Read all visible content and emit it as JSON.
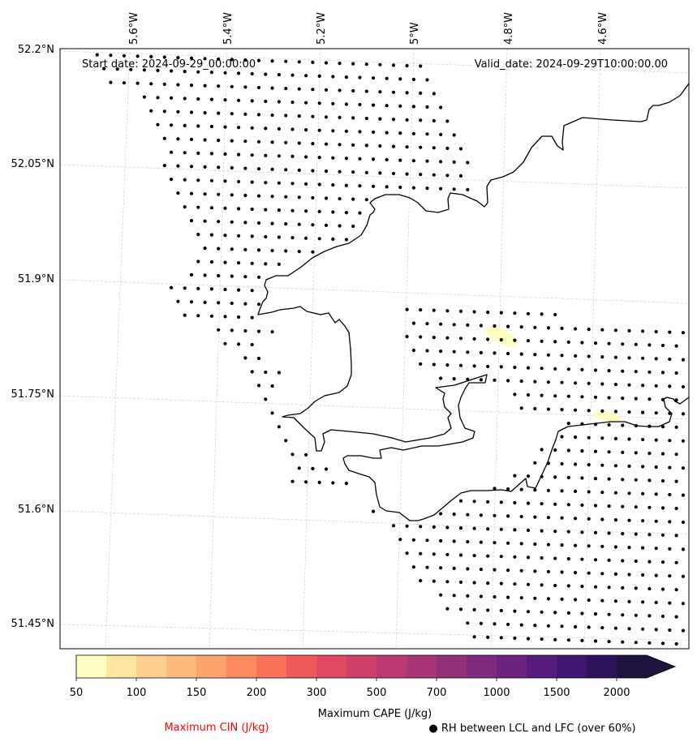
{
  "map": {
    "start_label": "Start date: 2024-09-29_00:00:00",
    "valid_label": "Valid_date: 2024-09-29T10:00:00.00",
    "lon_labels": [
      "5.6°W",
      "5.4°W",
      "5.2°W",
      "5°W",
      "4.8°W",
      "4.6°W"
    ],
    "lat_labels": [
      "52.2°N",
      "52.05°N",
      "51.9°N",
      "51.75°N",
      "51.6°N",
      "51.45°N"
    ],
    "coastline_color": "#000000",
    "cape_patch_color": "#fcfdbf",
    "dot_color": "#000000"
  },
  "colorbar": {
    "title": "Maximum CAPE (J/kg)",
    "tick_labels": [
      "50",
      "100",
      "150",
      "200",
      "300",
      "500",
      "700",
      "1000",
      "1500",
      "2000"
    ],
    "colors": [
      "#fffec4",
      "#fde6a0",
      "#fecf8e",
      "#feb97c",
      "#fda36d",
      "#fc8b60",
      "#f8735a",
      "#ee5a5a",
      "#e14a62",
      "#d0416a",
      "#bc3a71",
      "#a83576",
      "#93307a",
      "#7f2a7d",
      "#6b237f",
      "#561b7d",
      "#3f1671",
      "#2c1258",
      "#1f1340"
    ]
  },
  "legend": {
    "cin_label": "Maximum CIN (J/kg)",
    "cin_color": "#ff0000",
    "rh_label": "● RH between LCL and LFC (over 60%)"
  }
}
